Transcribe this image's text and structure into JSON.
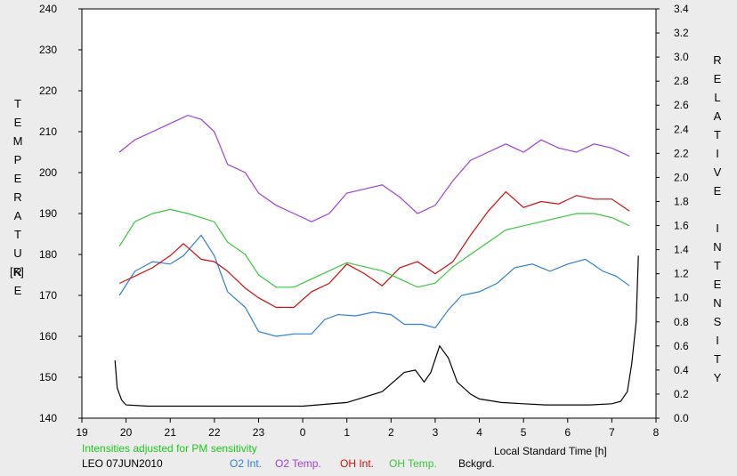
{
  "chart_data": {
    "type": "line",
    "xlabel": "Local Standard Time [h]",
    "ylabel_left": "TEMPERATURE",
    "ylabel_left_unit": "[K]",
    "ylabel_right": "RELATIVE INTENSITY",
    "x_tick_labels": [
      "19",
      "20",
      "21",
      "22",
      "23",
      "0",
      "1",
      "2",
      "3",
      "4",
      "5",
      "6",
      "7",
      "8"
    ],
    "xlim": [
      19,
      32
    ],
    "ylim_left": [
      140,
      240
    ],
    "ylim_right": [
      0.0,
      3.4
    ],
    "y_left_ticks": [
      140,
      150,
      160,
      170,
      180,
      190,
      200,
      210,
      220,
      230,
      240
    ],
    "y_right_ticks": [
      "0.0",
      "0.2",
      "0.4",
      "0.6",
      "0.8",
      "1.0",
      "1.2",
      "1.4",
      "1.6",
      "1.8",
      "2.0",
      "2.2",
      "2.4",
      "2.6",
      "2.8",
      "3.0",
      "3.2",
      "3.4"
    ],
    "grid": false,
    "legend_position": "bottom",
    "note": "Intensities adjusted for PM sensitivity",
    "station": "LEO 07JUN2010",
    "series": [
      {
        "name": "O2 Int.",
        "axis": "right",
        "color": "#2e7fd6",
        "x": [
          19.85,
          20.2,
          20.6,
          21.0,
          21.3,
          21.7,
          22.0,
          22.3,
          22.7,
          23.0,
          23.4,
          23.8,
          24.2,
          24.5,
          24.8,
          25.2,
          25.6,
          26.0,
          26.3,
          26.7,
          27.0,
          27.3,
          27.6,
          28.0,
          28.4,
          28.8,
          29.2,
          29.6,
          30.0,
          30.4,
          30.8,
          31.1,
          31.4
        ],
        "y": [
          1.02,
          1.22,
          1.3,
          1.28,
          1.35,
          1.52,
          1.35,
          1.05,
          0.92,
          0.72,
          0.68,
          0.7,
          0.7,
          0.82,
          0.86,
          0.85,
          0.88,
          0.86,
          0.78,
          0.78,
          0.75,
          0.9,
          1.02,
          1.05,
          1.12,
          1.25,
          1.28,
          1.22,
          1.28,
          1.32,
          1.22,
          1.18,
          1.1
        ]
      },
      {
        "name": "O2 Temp.",
        "axis": "left",
        "color": "#a040d8",
        "x": [
          19.85,
          20.2,
          20.6,
          21.0,
          21.4,
          21.7,
          22.0,
          22.3,
          22.7,
          23.0,
          23.4,
          23.8,
          24.2,
          24.6,
          25.0,
          25.4,
          25.8,
          26.2,
          26.6,
          27.0,
          27.4,
          27.8,
          28.2,
          28.6,
          29.0,
          29.4,
          29.8,
          30.2,
          30.6,
          31.0,
          31.4
        ],
        "y": [
          205,
          208,
          210,
          212,
          214,
          213,
          210,
          202,
          200,
          195,
          192,
          190,
          188,
          190,
          195,
          196,
          197,
          194,
          190,
          192,
          198,
          203,
          205,
          207,
          205,
          208,
          206,
          205,
          207,
          206,
          204
        ]
      },
      {
        "name": "OH Int.",
        "axis": "right",
        "color": "#cc1010",
        "x": [
          19.85,
          20.2,
          20.6,
          21.0,
          21.3,
          21.7,
          22.0,
          22.3,
          22.7,
          23.0,
          23.4,
          23.8,
          24.2,
          24.6,
          25.0,
          25.4,
          25.8,
          26.2,
          26.6,
          27.0,
          27.4,
          27.8,
          28.2,
          28.6,
          29.0,
          29.4,
          29.8,
          30.2,
          30.6,
          31.0,
          31.4
        ],
        "y": [
          1.12,
          1.18,
          1.25,
          1.35,
          1.45,
          1.32,
          1.3,
          1.22,
          1.08,
          1.0,
          0.92,
          0.92,
          1.05,
          1.12,
          1.28,
          1.2,
          1.1,
          1.25,
          1.3,
          1.2,
          1.3,
          1.52,
          1.72,
          1.88,
          1.75,
          1.8,
          1.78,
          1.85,
          1.82,
          1.82,
          1.72
        ]
      },
      {
        "name": "OH Temp.",
        "axis": "left",
        "color": "#38c838",
        "x": [
          19.85,
          20.2,
          20.6,
          21.0,
          21.4,
          21.7,
          22.0,
          22.3,
          22.7,
          23.0,
          23.4,
          23.8,
          24.2,
          24.6,
          25.0,
          25.4,
          25.8,
          26.2,
          26.6,
          27.0,
          27.4,
          27.8,
          28.2,
          28.6,
          29.0,
          29.4,
          29.8,
          30.2,
          30.6,
          31.0,
          31.4
        ],
        "y": [
          182,
          188,
          190,
          191,
          190,
          189,
          188,
          183,
          180,
          175,
          172,
          172,
          174,
          176,
          178,
          177,
          176,
          174,
          172,
          173,
          177,
          180,
          183,
          186,
          187,
          188,
          189,
          190,
          190,
          189,
          187
        ]
      },
      {
        "name": "Bckgrd.",
        "axis": "right",
        "color": "#000000",
        "x": [
          19.75,
          19.8,
          19.9,
          20.0,
          20.5,
          21.0,
          22.0,
          23.0,
          24.0,
          25.0,
          25.8,
          26.3,
          26.55,
          26.75,
          26.9,
          27.1,
          27.3,
          27.5,
          27.8,
          28.0,
          28.5,
          29.0,
          29.5,
          30.0,
          30.5,
          31.0,
          31.2,
          31.35,
          31.45,
          31.55,
          31.6
        ],
        "y": [
          0.48,
          0.25,
          0.15,
          0.11,
          0.1,
          0.1,
          0.1,
          0.1,
          0.1,
          0.13,
          0.22,
          0.38,
          0.4,
          0.3,
          0.38,
          0.6,
          0.5,
          0.3,
          0.2,
          0.16,
          0.13,
          0.12,
          0.11,
          0.11,
          0.11,
          0.12,
          0.14,
          0.22,
          0.45,
          0.8,
          1.35
        ]
      }
    ],
    "legend": [
      {
        "label": "O2 Int.",
        "color": "#2e7fd6"
      },
      {
        "label": "O2 Temp.",
        "color": "#a040d8"
      },
      {
        "label": "OH Int.",
        "color": "#cc1010"
      },
      {
        "label": "OH Temp.",
        "color": "#38c838"
      },
      {
        "label": "Bckgrd.",
        "color": "#000000"
      }
    ]
  }
}
